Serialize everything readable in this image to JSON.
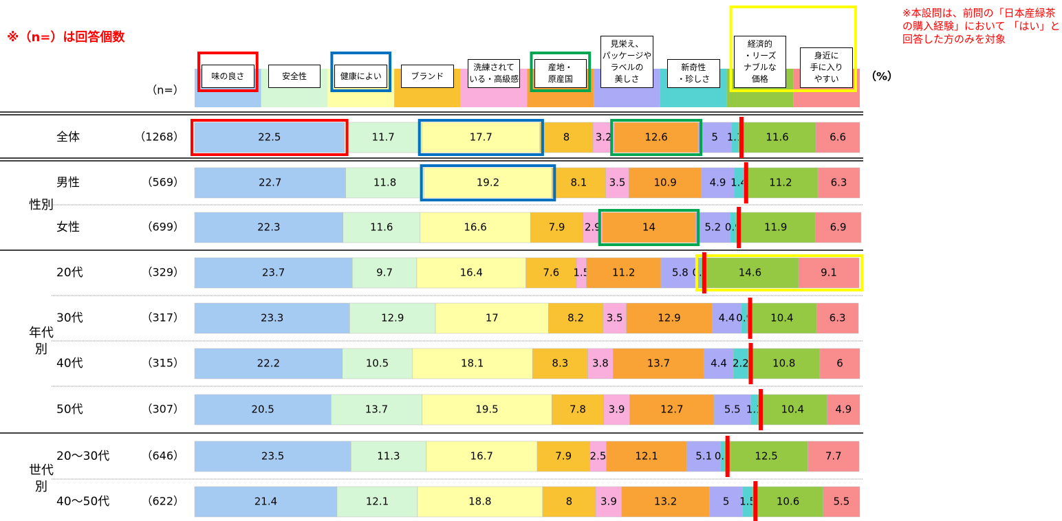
{
  "chart_data": {
    "type": "stacked_bar_horizontal",
    "note_n": "※（n=）は回答個数",
    "n_header": "（n=）",
    "unit": "（%）",
    "note": "※本設問は、前問の「日本産緑茶の購入経験」において 「はい」と回答した方のみを対象",
    "xlim": [
      0,
      100
    ],
    "categories": [
      "全体",
      "男性",
      "女性",
      "20代",
      "30代",
      "40代",
      "50代",
      "20～30代",
      "40～50代"
    ],
    "n": [
      "（1268）",
      "（569）",
      "（699）",
      "（329）",
      "（317）",
      "（315）",
      "（307）",
      "（646）",
      "（622）"
    ],
    "groups": [
      "性別",
      "年代別",
      "世代別"
    ],
    "series": [
      {
        "name": "味の良さ",
        "color": "#a6cbf3",
        "values": [
          22.5,
          22.7,
          22.3,
          23.7,
          23.3,
          22.2,
          20.5,
          23.5,
          21.4
        ]
      },
      {
        "name": "安全性",
        "color": "#d6f7d6",
        "values": [
          11.7,
          11.8,
          11.6,
          9.7,
          12.9,
          10.5,
          13.7,
          11.3,
          12.1
        ]
      },
      {
        "name": "健康によい",
        "color": "#ffffa6",
        "values": [
          17.7,
          19.2,
          16.6,
          16.4,
          17.0,
          18.1,
          19.5,
          16.7,
          18.8
        ]
      },
      {
        "name": "ブランド",
        "color": "#f9c232",
        "values": [
          8.0,
          8.1,
          7.9,
          7.6,
          8.2,
          8.3,
          7.8,
          7.9,
          8.0
        ]
      },
      {
        "name": "洗練されて\nいる・高級感",
        "color": "#f9aedc",
        "values": [
          3.2,
          3.5,
          2.9,
          1.5,
          3.5,
          3.8,
          3.9,
          2.5,
          3.9
        ]
      },
      {
        "name": "産地・\n原産国",
        "color": "#f9a235",
        "values": [
          12.6,
          10.9,
          14.0,
          11.2,
          12.9,
          13.7,
          12.7,
          12.1,
          13.2
        ]
      },
      {
        "name": "見栄え、\nパッケージや\nラベルの\n美しさ",
        "color": "#aaaaf6",
        "values": [
          5.0,
          4.9,
          5.2,
          5.8,
          4.4,
          4.4,
          5.5,
          5.1,
          5.0
        ]
      },
      {
        "name": "新奇性\n・珍しさ",
        "color": "#55d3d3",
        "values": [
          1.1,
          1.4,
          0.9,
          0.3,
          0.9,
          2.2,
          1.1,
          0.6,
          1.5
        ]
      },
      {
        "name": "経済的\n・リーズ\nナブルな\n価格",
        "color": "#95c943",
        "values": [
          11.6,
          11.2,
          11.9,
          14.6,
          10.4,
          10.8,
          10.4,
          12.5,
          10.6
        ]
      },
      {
        "name": "身近に\n手に入り\nやすい",
        "color": "#f98c8c",
        "values": [
          6.6,
          6.3,
          6.9,
          9.1,
          6.3,
          6.0,
          4.9,
          7.7,
          5.5
        ]
      }
    ]
  }
}
